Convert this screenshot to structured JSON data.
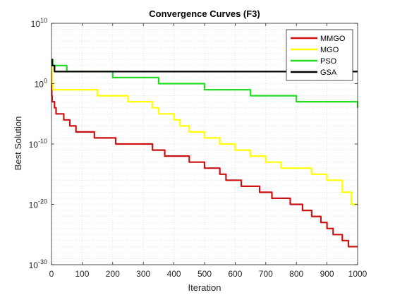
{
  "chart_data": {
    "type": "line",
    "title": "Convergence Curves (F3)",
    "xlabel": "Iteration",
    "ylabel": "Best Solution",
    "xlim": [
      0,
      1000
    ],
    "ylim": [
      1e-30,
      10000000000.0
    ],
    "yscale": "log",
    "grid": true,
    "legend_position": "top-right",
    "x_ticks": [
      0,
      100,
      200,
      300,
      400,
      500,
      600,
      700,
      800,
      900,
      1000
    ],
    "x_tick_labels": [
      "0",
      "100",
      "200",
      "300",
      "400",
      "500",
      "600",
      "700",
      "800",
      "900",
      "1000"
    ],
    "y_ticks": [
      1e-30,
      1e-20,
      1e-10,
      1,
      10000000000.0
    ],
    "y_tick_labels": [
      {
        "base": "10",
        "exp": "-30"
      },
      {
        "base": "10",
        "exp": "-20"
      },
      {
        "base": "10",
        "exp": "-10"
      },
      {
        "base": "10",
        "exp": "0"
      },
      {
        "base": "10",
        "exp": "10"
      }
    ],
    "series": [
      {
        "name": "MMGO",
        "color": "#cc1111",
        "x": [
          0,
          1,
          2,
          5,
          10,
          15,
          20,
          30,
          40,
          50,
          60,
          80,
          100,
          120,
          140,
          160,
          170,
          200,
          210,
          240,
          300,
          320,
          330,
          350,
          370,
          400,
          420,
          440,
          450,
          470,
          500,
          520,
          550,
          570,
          600,
          620,
          650,
          680,
          700,
          720,
          750,
          780,
          800,
          820,
          850,
          880,
          900,
          920,
          930,
          950,
          970,
          990,
          1000
        ],
        "y": [
          100.0,
          0.01,
          0.001,
          0.001,
          0.0001,
          1e-05,
          1e-05,
          1e-05,
          1e-06,
          1e-06,
          1e-07,
          1e-08,
          1e-08,
          1e-08,
          1e-09,
          1e-09,
          1e-09,
          1e-09,
          1e-10,
          1e-10,
          1e-10,
          1e-10,
          1e-11,
          1e-11,
          1e-12,
          1e-12,
          1e-12,
          1e-12,
          1e-13,
          1e-13,
          1e-14,
          1e-14,
          1e-15,
          1e-16,
          1e-16,
          1e-17,
          1e-17,
          1e-18,
          1e-18,
          1e-19,
          1e-19,
          1e-20,
          1e-20,
          1e-21,
          1e-22,
          1e-23,
          1e-24,
          1e-25,
          1e-25,
          1e-26,
          1e-27,
          1e-27,
          1e-27
        ]
      },
      {
        "name": "MGO",
        "color": "#ffff00",
        "x": [
          0,
          2,
          5,
          10,
          20,
          50,
          100,
          150,
          200,
          250,
          300,
          330,
          350,
          400,
          420,
          450,
          500,
          550,
          600,
          650,
          700,
          750,
          800,
          850,
          900,
          950,
          980,
          1000
        ],
        "y": [
          1000.0,
          1.0,
          0.1,
          0.1,
          0.1,
          0.1,
          0.1,
          0.01,
          0.01,
          0.001,
          0.001,
          0.0001,
          1e-05,
          1e-06,
          1e-07,
          1e-08,
          1e-09,
          1e-10,
          1e-11,
          1e-12,
          1e-13,
          1e-14,
          1e-14,
          1e-15,
          1e-16,
          1e-18,
          1e-20,
          1e-20
        ]
      },
      {
        "name": "PSO",
        "color": "#22dd22",
        "x": [
          0,
          5,
          10,
          20,
          50,
          100,
          150,
          200,
          250,
          300,
          350,
          400,
          450,
          500,
          550,
          600,
          650,
          700,
          750,
          800,
          850,
          900,
          950,
          1000
        ],
        "y": [
          10000.0,
          1000.0,
          1000.0,
          1000.0,
          100.0,
          100.0,
          100.0,
          10.0,
          10.0,
          10.0,
          1.0,
          1.0,
          1.0,
          0.1,
          0.1,
          0.1,
          0.01,
          0.01,
          0.01,
          0.001,
          0.001,
          0.001,
          0.001,
          0.0001
        ]
      },
      {
        "name": "GSA",
        "color": "#000000",
        "x": [
          0,
          2,
          5,
          10,
          20,
          50,
          100,
          150,
          200,
          250,
          300,
          400,
          500,
          600,
          700,
          800,
          900,
          1000
        ],
        "y": [
          10000.0,
          1000.0,
          1000.0,
          100.0,
          100.0,
          100.0,
          100.0,
          100.0,
          100.0,
          100.0,
          100.0,
          100.0,
          100.0,
          100.0,
          100.0,
          100.0,
          100.0,
          100.0
        ]
      }
    ]
  }
}
